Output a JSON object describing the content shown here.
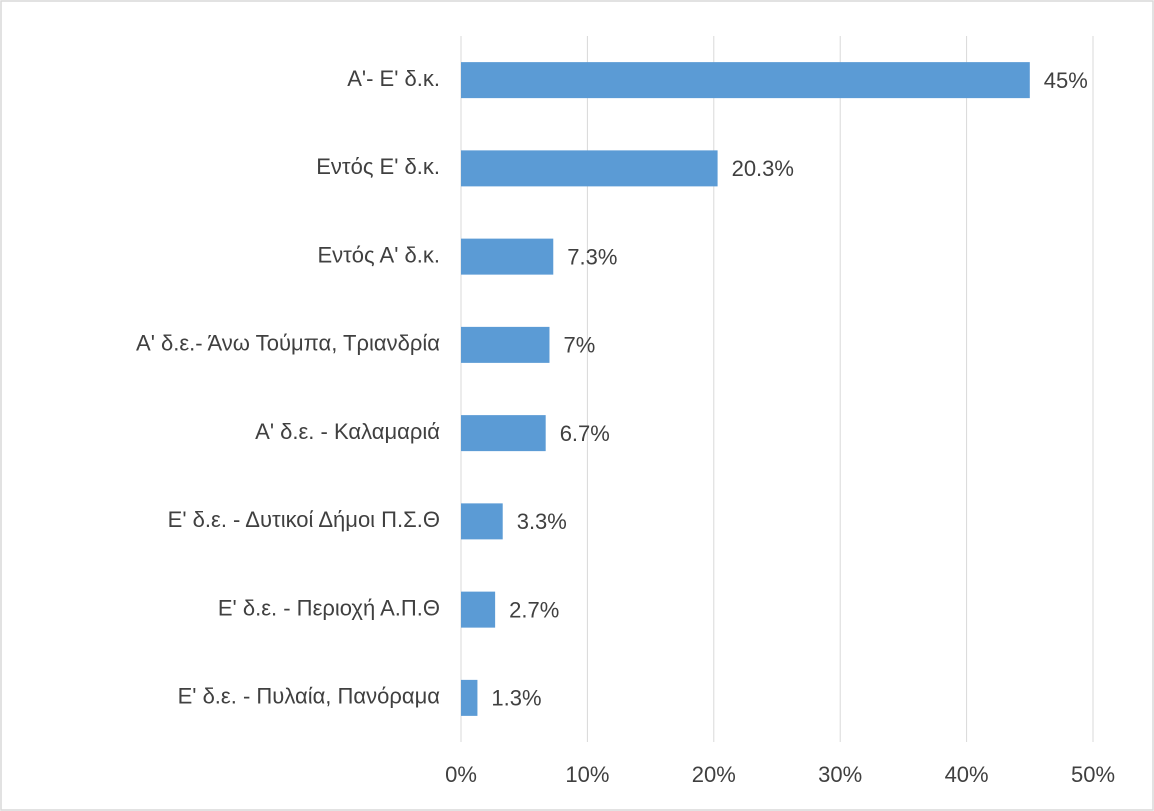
{
  "chart_data": {
    "type": "barh",
    "categories": [
      "Α'- Ε' δ.κ.",
      "Εντός Ε' δ.κ.",
      "Εντός Α' δ.κ.",
      "Α' δ.ε.- Άνω Τούμπα, Τριανδρία",
      "Α' δ.ε. - Καλαμαριά",
      "Ε' δ.ε. - Δυτικοί Δήμοι Π.Σ.Θ",
      "Ε' δ.ε. - Περιοχή Α.Π.Θ",
      "Ε' δ.ε. - Πυλαία, Πανόραμα"
    ],
    "values": [
      45,
      20.3,
      7.3,
      7,
      6.7,
      3.3,
      2.7,
      1.3
    ],
    "value_labels": [
      "45%",
      "20.3%",
      "7.3%",
      "7%",
      "6.7%",
      "3.3%",
      "2.7%",
      "1.3%"
    ],
    "color": "#5b9bd5",
    "xlim": [
      0,
      50
    ],
    "xticks": [
      {
        "value": 0,
        "label": "0%"
      },
      {
        "value": 10,
        "label": "10%"
      },
      {
        "value": 20,
        "label": "20%"
      },
      {
        "value": 30,
        "label": "30%"
      },
      {
        "value": 40,
        "label": "40%"
      },
      {
        "value": 50,
        "label": "50%"
      }
    ],
    "grid": true
  }
}
